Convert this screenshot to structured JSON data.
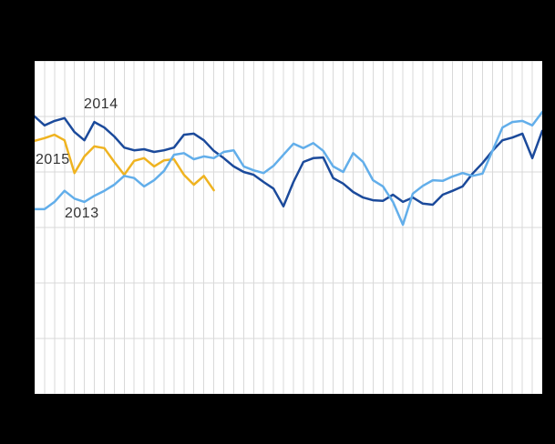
{
  "chart_data": {
    "type": "line",
    "title": "",
    "xlabel": "",
    "ylabel": "",
    "x_unit": "week",
    "x": [
      1,
      2,
      3,
      4,
      5,
      6,
      7,
      8,
      9,
      10,
      11,
      12,
      13,
      14,
      15,
      16,
      17,
      18,
      19,
      20,
      21,
      22,
      23,
      24,
      25,
      26,
      27,
      28,
      29,
      30,
      31,
      32,
      33,
      34,
      35,
      36,
      37,
      38,
      39,
      40,
      41,
      42,
      43,
      44,
      45,
      46,
      47,
      48,
      49,
      50,
      51,
      52
    ],
    "xlim": [
      1,
      52
    ],
    "ylim": [
      0,
      6
    ],
    "y_axis_labels_visible": false,
    "x_axis_labels_visible": false,
    "grid": {
      "vertical_lines": 52,
      "horizontal_lines": 7,
      "on": true
    },
    "legend_position": "inline-labels",
    "style": {
      "background": "#000000",
      "plot_background": "#ffffff",
      "gridline_color": "#d9d9d9",
      "label_color": "#333333"
    },
    "series": [
      {
        "name": "2014",
        "color": "#1b4a9b",
        "values": [
          5.0,
          4.84,
          4.92,
          4.97,
          4.72,
          4.57,
          4.9,
          4.8,
          4.64,
          4.44,
          4.39,
          4.41,
          4.36,
          4.39,
          4.44,
          4.67,
          4.69,
          4.57,
          4.38,
          4.25,
          4.1,
          4.0,
          3.95,
          3.82,
          3.7,
          3.38,
          3.82,
          4.18,
          4.25,
          4.26,
          3.89,
          3.79,
          3.64,
          3.54,
          3.49,
          3.48,
          3.59,
          3.46,
          3.54,
          3.43,
          3.41,
          3.59,
          3.66,
          3.74,
          3.97,
          4.16,
          4.38,
          4.57,
          4.62,
          4.69,
          4.25,
          4.74
        ]
      },
      {
        "name": "2015",
        "color": "#efb320",
        "values": [
          4.56,
          4.61,
          4.67,
          4.57,
          3.98,
          4.28,
          4.46,
          4.43,
          4.18,
          3.95,
          4.2,
          4.25,
          4.1,
          4.21,
          4.23,
          3.95,
          3.77,
          3.93,
          3.67
        ]
      },
      {
        "name": "2013",
        "color": "#62aeea",
        "values": [
          3.33,
          3.33,
          3.46,
          3.66,
          3.52,
          3.46,
          3.57,
          3.66,
          3.77,
          3.93,
          3.89,
          3.74,
          3.85,
          4.02,
          4.31,
          4.34,
          4.23,
          4.28,
          4.25,
          4.36,
          4.39,
          4.1,
          4.03,
          3.98,
          4.11,
          4.31,
          4.51,
          4.43,
          4.52,
          4.38,
          4.1,
          4.0,
          4.34,
          4.18,
          3.85,
          3.74,
          3.46,
          3.05,
          3.61,
          3.75,
          3.85,
          3.84,
          3.92,
          3.98,
          3.93,
          3.97,
          4.38,
          4.8,
          4.9,
          4.92,
          4.84,
          5.08
        ]
      }
    ]
  }
}
